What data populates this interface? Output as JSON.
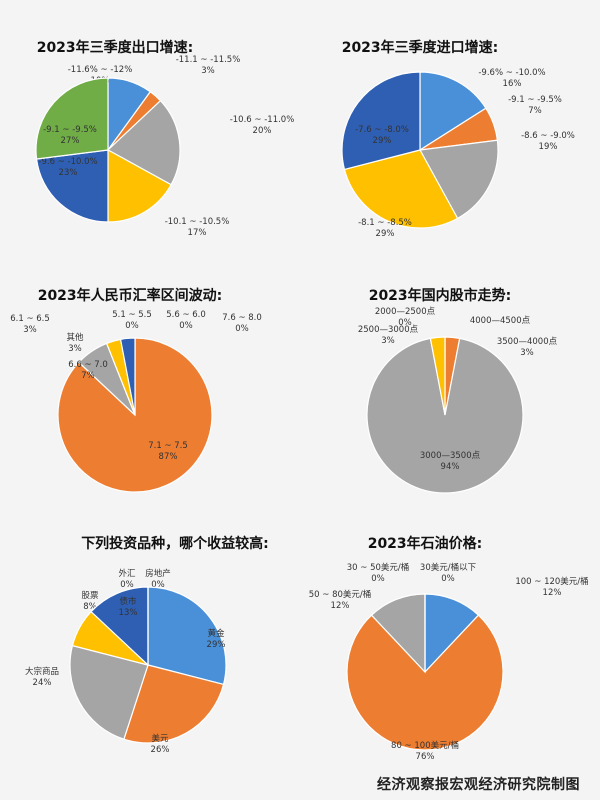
{
  "colors": {
    "blue": "#4a90d9",
    "orange": "#ed7d31",
    "gray": "#a5a5a5",
    "yellow": "#ffc000",
    "darkblue": "#2f5fb3",
    "green": "#70ad47",
    "lightblue": "#5b9bd5"
  },
  "footer": "经济观察报宏观经济研究院制图",
  "chart_data": [
    {
      "type": "pie",
      "title": "2023年三季度出口增速:",
      "slices": [
        {
          "label": "-11.6% ~ -12%",
          "value": 10,
          "pct": "10%",
          "color": "blue"
        },
        {
          "label": "-11.1 ~ -11.5%",
          "value": 3,
          "pct": "3%",
          "color": "orange"
        },
        {
          "label": "-10.6 ~ -11.0%",
          "value": 20,
          "pct": "20%",
          "color": "gray"
        },
        {
          "label": "-10.1 ~ -10.5%",
          "value": 17,
          "pct": "17%",
          "color": "yellow"
        },
        {
          "label": "-9.6 ~ -10.0%",
          "value": 23,
          "pct": "23%",
          "color": "darkblue"
        },
        {
          "label": "-9.1 ~ -9.5%",
          "value": 27,
          "pct": "27%",
          "color": "green"
        }
      ]
    },
    {
      "type": "pie",
      "title": "2023年三季度进口增速:",
      "slices": [
        {
          "label": "-9.6% ~ -10.0%",
          "value": 16,
          "pct": "16%",
          "color": "blue"
        },
        {
          "label": "-9.1 ~ -9.5%",
          "value": 7,
          "pct": "7%",
          "color": "orange"
        },
        {
          "label": "-8.6 ~ -9.0%",
          "value": 19,
          "pct": "19%",
          "color": "gray"
        },
        {
          "label": "-8.1 ~ -8.5%",
          "value": 29,
          "pct": "29%",
          "color": "yellow"
        },
        {
          "label": "-7.6 ~ -8.0%",
          "value": 29,
          "pct": "29%",
          "color": "darkblue"
        }
      ]
    },
    {
      "type": "pie",
      "title": "2023年人民币汇率区间波动:",
      "slices": [
        {
          "label": "5.1 ~ 5.5",
          "value": 0.01,
          "pct": "0%",
          "color": "blue"
        },
        {
          "label": "5.6 ~ 6.0",
          "value": 0.01,
          "pct": "0%",
          "color": "blue"
        },
        {
          "label": "7.1 ~ 7.5",
          "value": 87,
          "pct": "87%",
          "color": "orange"
        },
        {
          "label": "7.6 ~ 8.0",
          "value": 0.01,
          "pct": "0%",
          "color": "gray"
        },
        {
          "label": "6.6 ~ 7.0",
          "value": 7,
          "pct": "7%",
          "color": "gray"
        },
        {
          "label": "其他",
          "value": 3,
          "pct": "3%",
          "color": "yellow"
        },
        {
          "label": "6.1 ~ 6.5",
          "value": 3,
          "pct": "3%",
          "color": "darkblue"
        }
      ]
    },
    {
      "type": "pie",
      "title": "2023年国内股市走势:",
      "slices": [
        {
          "label": "2000—2500点",
          "value": 0.01,
          "pct": "0%",
          "color": "blue"
        },
        {
          "label": "4000—4500点",
          "value": 0.01,
          "pct": "",
          "color": "blue"
        },
        {
          "label": "3500—4000点",
          "value": 3,
          "pct": "3%",
          "color": "orange"
        },
        {
          "label": "3000—3500点",
          "value": 94,
          "pct": "94%",
          "color": "gray"
        },
        {
          "label": "2500—3000点",
          "value": 3,
          "pct": "3%",
          "color": "yellow"
        }
      ]
    },
    {
      "type": "pie",
      "title": "下列投资品种，哪个收益较高:",
      "slices": [
        {
          "label": "房地产",
          "value": 0.01,
          "pct": "0%",
          "color": "blue"
        },
        {
          "label": "黄金",
          "value": 29,
          "pct": "29%",
          "color": "blue"
        },
        {
          "label": "美元",
          "value": 26,
          "pct": "26%",
          "color": "orange"
        },
        {
          "label": "大宗商品",
          "value": 24,
          "pct": "24%",
          "color": "gray"
        },
        {
          "label": "股票",
          "value": 8,
          "pct": "8%",
          "color": "yellow"
        },
        {
          "label": "债市",
          "value": 13,
          "pct": "13%",
          "color": "darkblue"
        },
        {
          "label": "外汇",
          "value": 0.01,
          "pct": "0%",
          "color": "gray"
        }
      ]
    },
    {
      "type": "pie",
      "title": "2023年石油价格:",
      "slices": [
        {
          "label": "30美元/桶以下",
          "value": 0.01,
          "pct": "0%",
          "color": "blue"
        },
        {
          "label": "100 ~ 120美元/桶",
          "value": 12,
          "pct": "12%",
          "color": "blue"
        },
        {
          "label": "80 ~ 100美元/桶",
          "value": 76,
          "pct": "76%",
          "color": "orange"
        },
        {
          "label": "50 ~ 80美元/桶",
          "value": 12,
          "pct": "12%",
          "color": "gray"
        },
        {
          "label": "30 ~ 50美元/桶",
          "value": 0.01,
          "pct": "0%",
          "color": "yellow"
        }
      ]
    }
  ]
}
